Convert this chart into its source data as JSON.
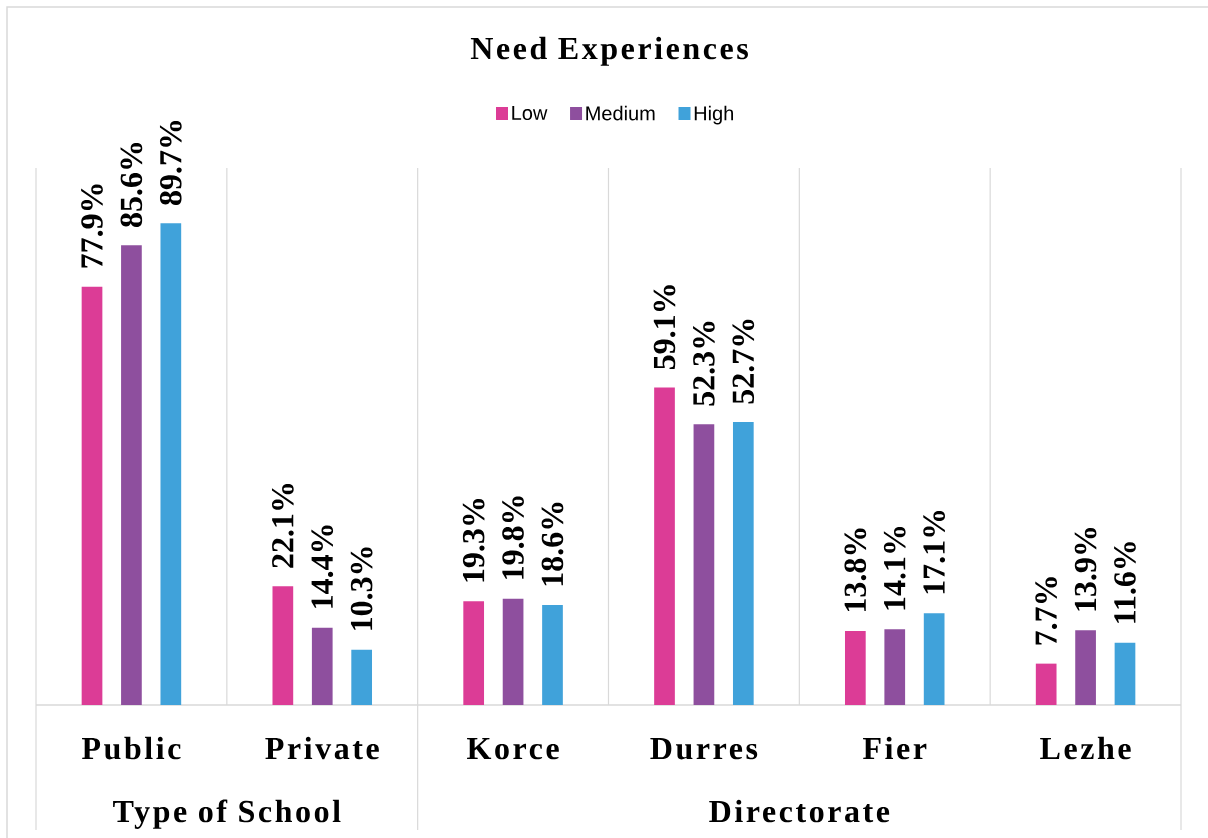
{
  "chart_data": {
    "type": "bar",
    "title": "Need Experiences",
    "categories": [
      "Public",
      "Private",
      "Korce",
      "Durres",
      "Fier",
      "Lezhe"
    ],
    "series": [
      {
        "name": "Low",
        "color": "#dc3c96",
        "values": [
          77.9,
          22.1,
          19.3,
          59.1,
          13.8,
          7.7
        ],
        "value_labels": [
          "77.9%",
          "22.1%",
          "19.3%",
          "59.1%",
          "13.8%",
          "7.7%"
        ]
      },
      {
        "name": "Medium",
        "color": "#8e4f9e",
        "values": [
          85.6,
          14.4,
          19.8,
          52.3,
          14.1,
          13.9
        ],
        "value_labels": [
          "85.6%",
          "14.4%",
          "19.8%",
          "52.3%",
          "14.1%",
          "13.9%"
        ]
      },
      {
        "name": "High",
        "color": "#40a2da",
        "values": [
          89.7,
          10.3,
          18.6,
          52.7,
          17.1,
          11.6
        ],
        "value_labels": [
          "89.7%",
          "10.3%",
          "18.6%",
          "52.7%",
          "17.1%",
          "11.6%"
        ]
      }
    ],
    "ylim": [
      0,
      100
    ],
    "grid": "x",
    "legend": "top",
    "annotations": [
      "Type of School",
      "Directorate"
    ]
  }
}
